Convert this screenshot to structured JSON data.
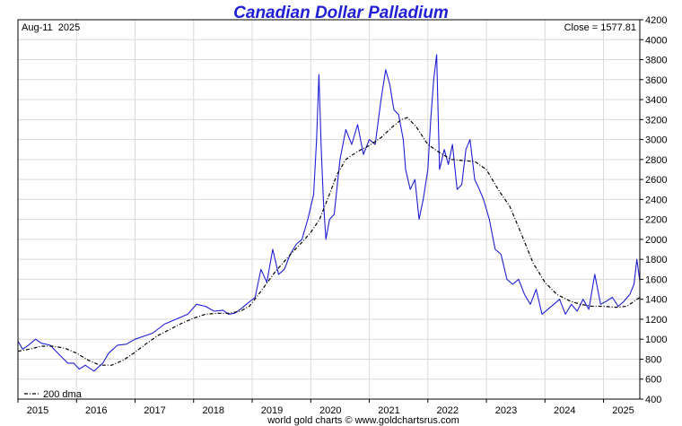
{
  "chart_data": {
    "type": "line",
    "title": "Canadian Dollar Palladium",
    "date_label": "Aug-11  2025",
    "close_label": "Close = 1577.81",
    "credit": "world gold charts © www.goldchartsrus.com",
    "ylim": [
      400,
      4200
    ],
    "xlim": [
      2015.0,
      2025.62
    ],
    "y_ticks": [
      400,
      600,
      800,
      1000,
      1200,
      1400,
      1600,
      1800,
      2000,
      2200,
      2400,
      2600,
      2800,
      3000,
      3200,
      3400,
      3600,
      3800,
      4000,
      4200
    ],
    "x_ticks": [
      "2015",
      "2016",
      "2017",
      "2018",
      "2019",
      "2020",
      "2021",
      "2022",
      "2023",
      "2024",
      "2025"
    ],
    "grid": true,
    "legend": {
      "position": "bottom-left",
      "label": "200 dma"
    },
    "series": [
      {
        "style": "solid",
        "color": "#1f1fd6",
        "x": [
          2015.0,
          2015.08,
          2015.18,
          2015.3,
          2015.4,
          2015.55,
          2015.65,
          2015.75,
          2015.85,
          2015.95,
          2016.05,
          2016.15,
          2016.3,
          2016.45,
          2016.55,
          2016.7,
          2016.85,
          2017.0,
          2017.15,
          2017.3,
          2017.5,
          2017.7,
          2017.9,
          2018.05,
          2018.2,
          2018.35,
          2018.5,
          2018.6,
          2018.7,
          2018.8,
          2018.9,
          2019.05,
          2019.15,
          2019.25,
          2019.35,
          2019.45,
          2019.55,
          2019.65,
          2019.75,
          2019.85,
          2019.95,
          2020.05,
          2020.1,
          2020.14,
          2020.18,
          2020.22,
          2020.26,
          2020.32,
          2020.4,
          2020.5,
          2020.6,
          2020.7,
          2020.8,
          2020.9,
          2021.0,
          2021.1,
          2021.2,
          2021.28,
          2021.35,
          2021.42,
          2021.5,
          2021.58,
          2021.62,
          2021.7,
          2021.78,
          2021.85,
          2021.92,
          2022.0,
          2022.05,
          2022.1,
          2022.15,
          2022.2,
          2022.28,
          2022.35,
          2022.42,
          2022.5,
          2022.58,
          2022.65,
          2022.72,
          2022.8,
          2022.88,
          2022.95,
          2023.05,
          2023.15,
          2023.25,
          2023.35,
          2023.45,
          2023.55,
          2023.65,
          2023.75,
          2023.85,
          2023.95,
          2024.05,
          2024.15,
          2024.25,
          2024.35,
          2024.45,
          2024.55,
          2024.65,
          2024.75,
          2024.85,
          2024.95,
          2025.05,
          2025.15,
          2025.25,
          2025.35,
          2025.45,
          2025.52,
          2025.57,
          2025.62
        ],
        "y": [
          980,
          900,
          940,
          1000,
          960,
          940,
          880,
          820,
          760,
          760,
          700,
          740,
          680,
          760,
          860,
          940,
          950,
          1000,
          1030,
          1060,
          1150,
          1200,
          1250,
          1350,
          1330,
          1280,
          1290,
          1250,
          1260,
          1300,
          1350,
          1420,
          1700,
          1570,
          1900,
          1650,
          1700,
          1850,
          1950,
          2000,
          2200,
          2450,
          3000,
          3650,
          2900,
          2350,
          2000,
          2200,
          2250,
          2800,
          3100,
          2950,
          3150,
          2850,
          3000,
          2950,
          3400,
          3700,
          3550,
          3300,
          3250,
          3000,
          2700,
          2500,
          2600,
          2200,
          2400,
          2700,
          3200,
          3600,
          3850,
          2700,
          2900,
          2750,
          2950,
          2500,
          2550,
          2900,
          3000,
          2600,
          2500,
          2400,
          2200,
          1900,
          1850,
          1600,
          1550,
          1600,
          1450,
          1350,
          1500,
          1250,
          1300,
          1350,
          1400,
          1250,
          1350,
          1280,
          1400,
          1300,
          1650,
          1350,
          1380,
          1420,
          1330,
          1380,
          1450,
          1550,
          1800,
          1580
        ]
      },
      {
        "name": "200 dma",
        "style": "dashed",
        "color": "#000000",
        "x": [
          2015.0,
          2015.2,
          2015.4,
          2015.6,
          2015.8,
          2016.0,
          2016.2,
          2016.4,
          2016.6,
          2016.8,
          2017.0,
          2017.2,
          2017.4,
          2017.6,
          2017.8,
          2018.0,
          2018.2,
          2018.4,
          2018.6,
          2018.8,
          2018.95,
          2019.1,
          2019.25,
          2019.4,
          2019.55,
          2019.7,
          2019.85,
          2020.0,
          2020.15,
          2020.3,
          2020.45,
          2020.6,
          2020.8,
          2021.0,
          2021.2,
          2021.4,
          2021.55,
          2021.65,
          2021.8,
          2022.0,
          2022.2,
          2022.4,
          2022.6,
          2022.8,
          2023.0,
          2023.2,
          2023.4,
          2023.6,
          2023.8,
          2024.0,
          2024.2,
          2024.4,
          2024.6,
          2024.8,
          2025.0,
          2025.2,
          2025.4,
          2025.62
        ],
        "y": [
          880,
          900,
          930,
          930,
          910,
          860,
          790,
          740,
          740,
          790,
          870,
          960,
          1040,
          1100,
          1160,
          1210,
          1250,
          1260,
          1260,
          1280,
          1330,
          1440,
          1560,
          1680,
          1780,
          1880,
          1970,
          2070,
          2200,
          2420,
          2650,
          2800,
          2880,
          2940,
          3020,
          3130,
          3200,
          3220,
          3130,
          2950,
          2870,
          2800,
          2790,
          2780,
          2700,
          2500,
          2330,
          2050,
          1760,
          1570,
          1450,
          1390,
          1350,
          1330,
          1330,
          1320,
          1330,
          1420
        ]
      }
    ]
  }
}
